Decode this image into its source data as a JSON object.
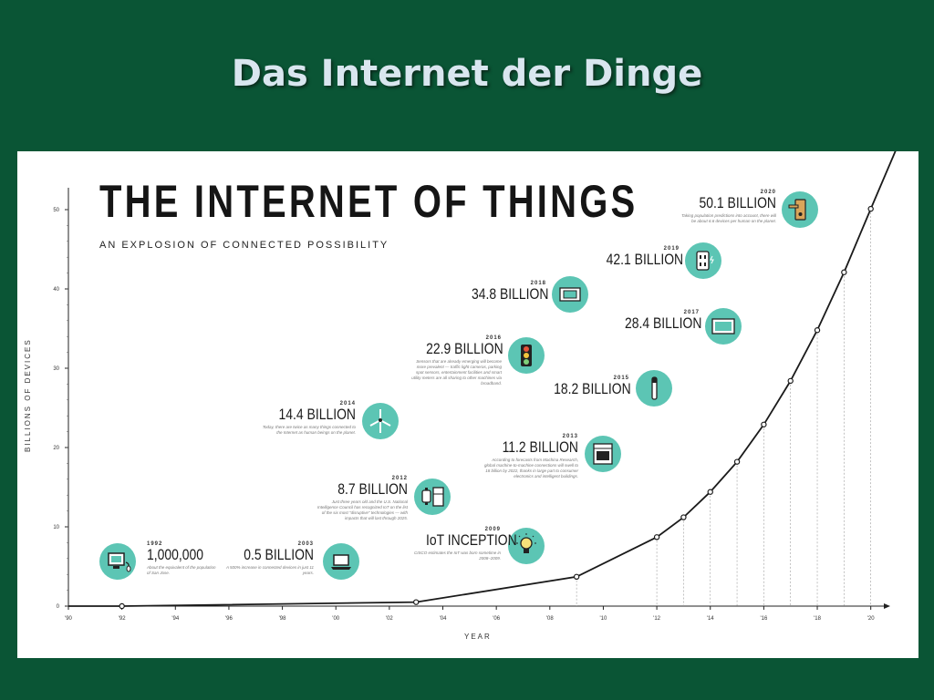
{
  "slide_title": "Das Internet der Dinge",
  "chart_data": {
    "type": "line",
    "title": "THE INTERNET OF THINGS",
    "subtitle": "AN EXPLOSION OF CONNECTED POSSIBILITY",
    "xlabel": "YEAR",
    "ylabel": "BILLIONS OF DEVICES",
    "xlim": [
      1990,
      2021
    ],
    "ylim": [
      0,
      50
    ],
    "x_ticks": [
      1990,
      1992,
      1994,
      1996,
      1998,
      2000,
      2002,
      2004,
      2006,
      2008,
      2010,
      2012,
      2014,
      2016,
      2018,
      2020
    ],
    "x_tick_labels": [
      "'90",
      "'92",
      "'94",
      "'96",
      "'98",
      "'00",
      "'02",
      "'04",
      "'06",
      "'08",
      "'10",
      "'12",
      "'14",
      "'16",
      "'18",
      "'20"
    ],
    "y_ticks": [
      0,
      10,
      20,
      30,
      40,
      50
    ],
    "series": [
      {
        "x": [
          1990,
          1992,
          2003,
          2009,
          2012,
          2013,
          2014,
          2015,
          2016,
          2017,
          2018,
          2019,
          2020,
          2021
        ],
        "y": [
          0.0,
          0.001,
          0.5,
          3.7,
          8.7,
          11.2,
          14.4,
          18.2,
          22.9,
          28.4,
          34.8,
          42.1,
          50.1,
          58
        ]
      }
    ],
    "markers": [
      {
        "x": 1992,
        "y": 0.001
      },
      {
        "x": 2003,
        "y": 0.5
      },
      {
        "x": 2009,
        "y": 3.7
      },
      {
        "x": 2012,
        "y": 8.7
      },
      {
        "x": 2013,
        "y": 11.2
      },
      {
        "x": 2014,
        "y": 14.4
      },
      {
        "x": 2015,
        "y": 18.2
      },
      {
        "x": 2016,
        "y": 22.9
      },
      {
        "x": 2017,
        "y": 28.4
      },
      {
        "x": 2018,
        "y": 34.8
      },
      {
        "x": 2019,
        "y": 42.1
      },
      {
        "x": 2020,
        "y": 50.1
      }
    ],
    "annotations": {
      "a1992": {
        "year": "1992",
        "value": "1,000,000",
        "desc": "About the equivalent of the population of San Jose."
      },
      "a2003": {
        "year": "2003",
        "value": "0.5 BILLION",
        "desc": "A 500% increase in connected devices in just 11 years."
      },
      "a2009": {
        "year": "2009",
        "value": "IoT INCEPTION",
        "desc": "CISCO estimates the IoT was born sometime in 2008–2009."
      },
      "a2012": {
        "year": "2012",
        "value": "8.7 BILLION",
        "desc": "Just three years old and the U.S. National Intelligence Council has recognized IoT on the list of the six most \"disruptive\" technologies — with impacts that will last through 2025."
      },
      "a2013": {
        "year": "2013",
        "value": "11.2 BILLION",
        "desc": "According to forecasts from Machina Research, global machine-to-machine connections will swell to 18 billion by 2022, thanks in large part to consumer electronics and intelligent buildings."
      },
      "a2014": {
        "year": "2014",
        "value": "14.4 BILLION",
        "desc": "Today, there are twice as many things connected to the Internet as human beings on the planet."
      },
      "a2015": {
        "year": "2015",
        "value": "18.2 BILLION"
      },
      "a2016": {
        "year": "2016",
        "value": "22.9 BILLION",
        "desc": "Sensors that are already emerging will become more prevalent — traffic light cameras, parking spot sensors, entertainment facilities and smart utility meters are all sharing to other machines via broadband."
      },
      "a2017": {
        "year": "2017",
        "value": "28.4 BILLION"
      },
      "a2018": {
        "year": "2018",
        "value": "34.8 BILLION"
      },
      "a2019": {
        "year": "2019",
        "value": "42.1 BILLION"
      },
      "a2020": {
        "year": "2020",
        "value": "50.1 BILLION",
        "desc": "Taking population predictions into account, there will be about 6.6 devices per human on the planet."
      }
    }
  },
  "colors": {
    "background": "#0a5535",
    "accent": "#5cc5b4",
    "line": "#1a1a1a"
  },
  "icons": [
    "computer-icon",
    "laptop-icon",
    "lightbulb-icon",
    "smartwatch-icon",
    "oven-icon",
    "wind-turbine-icon",
    "toothbrush-icon",
    "traffic-light-icon",
    "tv-icon",
    "thermostat-icon",
    "outlet-icon",
    "door-lock-icon"
  ]
}
